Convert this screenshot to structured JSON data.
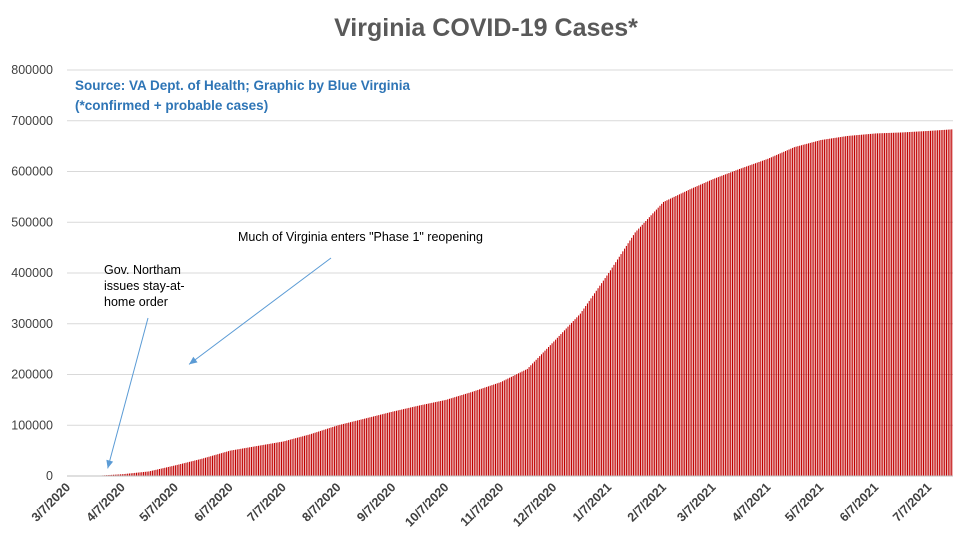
{
  "chart_data": {
    "type": "bar",
    "title": "Virginia COVID-19 Cases*",
    "source_line1": "Source: VA Dept. of Health; Graphic by Blue Virginia",
    "source_line2": "(*confirmed + probable cases)",
    "ylim": [
      0,
      800000
    ],
    "yticks": [
      "0",
      "100000",
      "200000",
      "300000",
      "400000",
      "500000",
      "600000",
      "700000",
      "800000"
    ],
    "xtick_labels": [
      "3/7/2020",
      "4/7/2020",
      "5/7/2020",
      "6/7/2020",
      "7/7/2020",
      "8/7/2020",
      "9/7/2020",
      "10/7/2020",
      "11/7/2020",
      "12/7/2020",
      "1/7/2021",
      "2/7/2021",
      "3/7/2021",
      "4/7/2021",
      "5/7/2021",
      "6/7/2021",
      "7/7/2021"
    ],
    "grid": true,
    "bar_color": "#c00000",
    "series": [
      {
        "x": [
          "3/7/2020",
          "3/22/2020",
          "4/7/2020",
          "4/22/2020",
          "5/7/2020",
          "5/22/2020",
          "6/7/2020",
          "6/22/2020",
          "7/7/2020",
          "7/22/2020",
          "8/7/2020",
          "8/22/2020",
          "9/7/2020",
          "9/22/2020",
          "10/7/2020",
          "10/22/2020",
          "11/7/2020",
          "11/22/2020",
          "12/7/2020",
          "12/22/2020",
          "1/7/2021",
          "1/22/2021",
          "2/7/2021",
          "2/22/2021",
          "3/7/2021",
          "3/22/2021",
          "4/7/2021",
          "4/22/2021",
          "5/7/2021",
          "5/22/2021",
          "6/7/2021",
          "6/22/2021",
          "7/7/2021",
          "7/20/2021"
        ],
        "values": [
          0,
          200,
          3500,
          9000,
          21000,
          34000,
          50000,
          59000,
          68000,
          82000,
          100000,
          113000,
          127000,
          139000,
          150000,
          166000,
          185000,
          211000,
          265000,
          320000,
          400000,
          480000,
          540000,
          565000,
          585000,
          605000,
          625000,
          648000,
          662000,
          670000,
          675000,
          677000,
          680000,
          683000
        ]
      }
    ],
    "annotations": [
      {
        "lines": [
          "Gov. Northam",
          "issues stay-at-",
          "home order"
        ],
        "target_date": "3/30/2020",
        "target_value": 15000
      },
      {
        "lines": [
          "Much of Virginia enters \"Phase 1\" reopening"
        ],
        "target_date": "5/15/2020",
        "target_value": 220000
      }
    ]
  },
  "colors": {
    "source_text": "#2e75b6",
    "arrow": "#5b9bd5",
    "grid": "#d9d9d9",
    "axis": "#bfbfbf"
  }
}
